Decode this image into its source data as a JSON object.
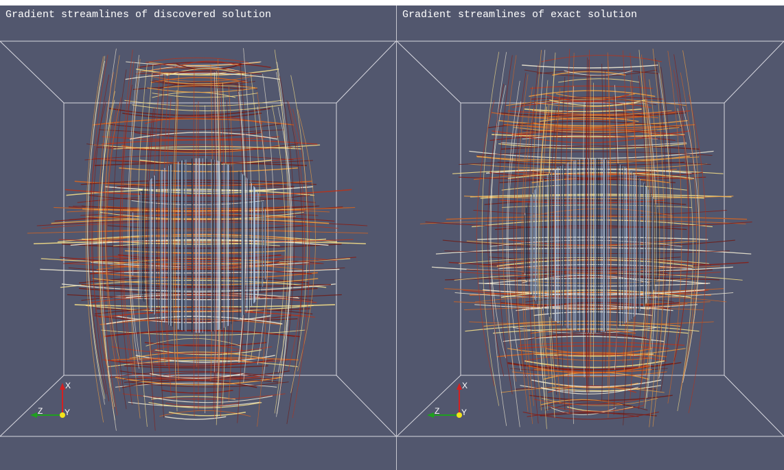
{
  "panels": [
    {
      "title": "Gradient streamlines of discovered solution",
      "axes": {
        "x": "X",
        "z": "Z",
        "y": "Y"
      }
    },
    {
      "title": "Gradient streamlines of exact solution",
      "axes": {
        "x": "X",
        "z": "Z",
        "y": "Y"
      }
    }
  ]
}
